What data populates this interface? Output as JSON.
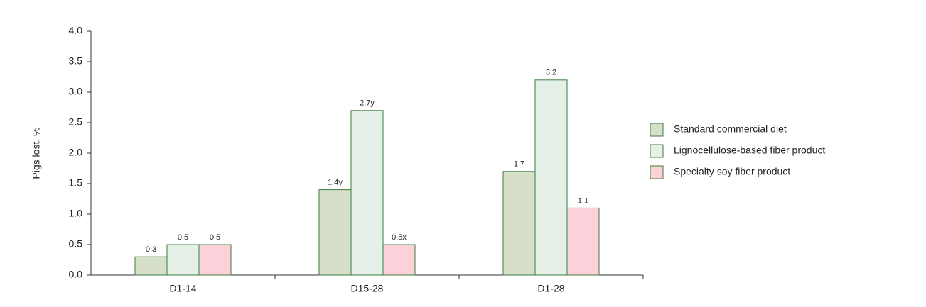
{
  "chart_data": {
    "type": "bar",
    "y_label": "Pigs lost, %",
    "categories": [
      "D1-14",
      "D15-28",
      "D1-28"
    ],
    "series": [
      {
        "name": "Standard commercial diet",
        "color": "#d5dfc9",
        "values": [
          0.3,
          1.4,
          1.7
        ],
        "value_labels": [
          "0.3",
          "1.4y",
          "1.7"
        ]
      },
      {
        "name": "Lignocellulose-based fiber product",
        "color": "#e5f0e9",
        "values": [
          0.5,
          2.7,
          3.2
        ],
        "value_labels": [
          "0.5",
          "2.7y",
          "3.2"
        ]
      },
      {
        "name": "Specialty soy fiber product",
        "color": "#fdd1d9",
        "values": [
          0.5,
          0.5,
          1.1
        ],
        "value_labels": [
          "0.5",
          "0.5x",
          "1.1"
        ]
      }
    ],
    "edge_color": "#3e7d3e",
    "ylim": [
      0,
      4
    ],
    "yticks": [
      {
        "value": 0,
        "label": "0.0"
      },
      0.5,
      {
        "value": 1,
        "label": "1.0"
      },
      1.5,
      {
        "value": 2,
        "label": "2.0"
      },
      2.5,
      {
        "value": 3,
        "label": "3.0"
      },
      3.5,
      {
        "value": 4,
        "label": "4.0"
      }
    ],
    "grid": false,
    "legend": "right"
  }
}
